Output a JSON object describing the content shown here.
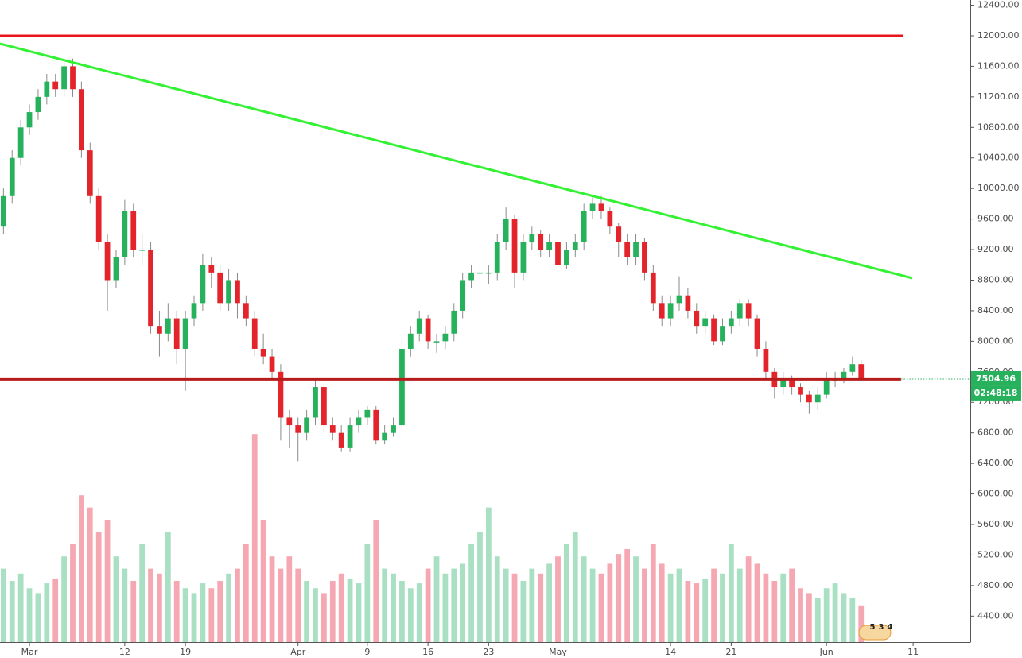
{
  "chart_data": {
    "type": "candlestick",
    "x": [
      -3,
      -2,
      -1,
      0,
      1,
      2,
      3,
      4,
      5,
      6,
      7,
      8,
      9,
      10,
      11,
      12,
      13,
      14,
      15,
      16,
      17,
      18,
      19,
      20,
      21,
      22,
      23,
      24,
      25,
      26,
      27,
      28,
      29,
      30,
      31,
      32,
      33,
      34,
      35,
      36,
      37,
      38,
      39,
      40,
      41,
      42,
      43,
      44,
      45,
      46,
      47,
      48,
      49,
      50,
      51,
      52,
      53,
      54,
      55,
      56,
      57,
      58,
      59,
      60,
      61,
      62,
      63,
      64,
      65,
      66,
      67,
      68,
      69,
      70,
      71,
      72,
      73,
      74,
      75,
      76,
      77,
      78,
      79,
      80,
      81,
      82,
      83,
      84,
      85,
      86,
      87,
      88,
      89,
      90,
      91,
      92,
      93,
      94,
      95,
      96
    ],
    "open": [
      9500,
      9900,
      10400,
      10800,
      11000,
      11200,
      11400,
      11300,
      11600,
      11300,
      10500,
      9900,
      9300,
      8800,
      9100,
      9700,
      9200,
      9200,
      8200,
      8100,
      8300,
      7900,
      8300,
      8500,
      9000,
      8900,
      8500,
      8800,
      8500,
      8300,
      7900,
      7800,
      7600,
      7000,
      6900,
      6800,
      7000,
      7400,
      6900,
      6800,
      6600,
      6900,
      7000,
      7100,
      6700,
      6800,
      6900,
      7900,
      8100,
      8300,
      8000,
      8000,
      8100,
      8400,
      8800,
      8900,
      8900,
      8900,
      9300,
      9600,
      8900,
      9300,
      9400,
      9200,
      9300,
      9000,
      9200,
      9300,
      9700,
      9800,
      9700,
      9500,
      9300,
      9100,
      9300,
      8900,
      8500,
      8300,
      8500,
      8600,
      8400,
      8200,
      8300,
      8000,
      8200,
      8300,
      8500,
      8300,
      7900,
      7600,
      7400,
      7500,
      7400,
      7300,
      7200,
      7300,
      7500,
      7500,
      7600,
      7700
    ],
    "close": [
      9900,
      10400,
      10800,
      11000,
      11200,
      11400,
      11300,
      11600,
      11300,
      10500,
      9900,
      9300,
      8800,
      9100,
      9700,
      9200,
      9200,
      8200,
      8100,
      8300,
      7900,
      8300,
      8500,
      9000,
      8900,
      8500,
      8800,
      8500,
      8300,
      7900,
      7800,
      7600,
      7000,
      6900,
      6800,
      7000,
      7400,
      6900,
      6800,
      6600,
      6900,
      7000,
      7100,
      6700,
      6800,
      6900,
      7900,
      8100,
      8300,
      8000,
      8000,
      8100,
      8400,
      8800,
      8900,
      8900,
      8900,
      9300,
      9600,
      8900,
      9300,
      9400,
      9200,
      9300,
      9000,
      9200,
      9300,
      9700,
      9800,
      9700,
      9500,
      9300,
      9100,
      9300,
      8900,
      8500,
      8300,
      8500,
      8600,
      8400,
      8200,
      8300,
      8000,
      8200,
      8300,
      8500,
      8300,
      7900,
      7600,
      7400,
      7500,
      7400,
      7300,
      7200,
      7300,
      7500,
      7500,
      7600,
      7700,
      7505
    ],
    "high": [
      10000,
      10500,
      10900,
      11100,
      11300,
      11500,
      11500,
      11650,
      11700,
      11400,
      10600,
      10000,
      9400,
      9200,
      9850,
      9800,
      9400,
      9300,
      8400,
      8500,
      8400,
      8400,
      8600,
      9150,
      9100,
      9000,
      8950,
      8900,
      8600,
      8400,
      8100,
      7900,
      7700,
      7100,
      7000,
      7100,
      7500,
      7450,
      7000,
      6900,
      7000,
      7100,
      7150,
      7150,
      6900,
      7000,
      8050,
      8200,
      8400,
      8350,
      8100,
      8200,
      8500,
      8900,
      9000,
      9000,
      9000,
      9400,
      9750,
      9650,
      9400,
      9500,
      9450,
      9400,
      9350,
      9300,
      9400,
      9800,
      9900,
      9900,
      9750,
      9550,
      9400,
      9400,
      9350,
      9000,
      8600,
      8600,
      8850,
      8700,
      8500,
      8400,
      8350,
      8300,
      8400,
      8550,
      8550,
      8350,
      8000,
      7650,
      7600,
      7550,
      7450,
      7350,
      7400,
      7600,
      7600,
      7650,
      7800,
      7750
    ],
    "low": [
      9400,
      9800,
      10300,
      10700,
      10900,
      11100,
      11200,
      11200,
      11200,
      10400,
      9800,
      9200,
      8400,
      8700,
      9000,
      9100,
      9000,
      8100,
      7800,
      8000,
      7700,
      7350,
      8200,
      8400,
      8700,
      8400,
      8400,
      8300,
      8200,
      7800,
      7700,
      7500,
      6700,
      6600,
      6430,
      6700,
      6900,
      6800,
      6700,
      6550,
      6550,
      6800,
      6900,
      6650,
      6650,
      6750,
      6850,
      7800,
      8000,
      7900,
      7850,
      7900,
      8000,
      8300,
      8700,
      8800,
      8750,
      8800,
      9200,
      8700,
      8800,
      9200,
      9100,
      9100,
      8900,
      8950,
      9100,
      9200,
      9600,
      9600,
      9400,
      9100,
      9000,
      9000,
      8800,
      8400,
      8200,
      8200,
      8400,
      8300,
      8100,
      8100,
      7950,
      7950,
      8100,
      8200,
      8200,
      7800,
      7500,
      7250,
      7300,
      7300,
      7200,
      7050,
      7100,
      7250,
      7400,
      7450,
      7550,
      7480
    ],
    "volume": [
      30,
      25,
      28,
      22,
      20,
      24,
      26,
      35,
      40,
      60,
      55,
      45,
      50,
      35,
      30,
      25,
      40,
      30,
      28,
      45,
      25,
      22,
      20,
      24,
      22,
      25,
      28,
      30,
      40,
      85,
      50,
      35,
      30,
      35,
      30,
      25,
      22,
      20,
      25,
      28,
      26,
      24,
      40,
      50,
      30,
      28,
      25,
      22,
      24,
      30,
      35,
      28,
      30,
      32,
      40,
      45,
      55,
      35,
      30,
      28,
      25,
      30,
      28,
      32,
      35,
      40,
      45,
      35,
      30,
      28,
      32,
      36,
      38,
      35,
      30,
      40,
      32,
      28,
      30,
      25,
      24,
      26,
      30,
      28,
      40,
      30,
      35,
      32,
      28,
      25,
      28,
      30,
      22,
      20,
      18,
      22,
      24,
      20,
      18,
      15
    ],
    "volume_lim": [
      0,
      100
    ],
    "up_color": "#27b15c",
    "down_color": "#e3242b",
    "volume_up_color": "#a9dfc2",
    "volume_down_color": "#f5a8b2",
    "xlim": [
      -3.4,
      108.6
    ],
    "xticks": [
      {
        "value": 0,
        "label": "Mar"
      },
      {
        "value": 11,
        "label": "12"
      },
      {
        "value": 18,
        "label": "19"
      },
      {
        "value": 31,
        "label": "Apr"
      },
      {
        "value": 39,
        "label": "9"
      },
      {
        "value": 46,
        "label": "16"
      },
      {
        "value": 53,
        "label": "23"
      },
      {
        "value": 61,
        "label": "May"
      },
      {
        "value": 74,
        "label": "14"
      },
      {
        "value": 81,
        "label": "21"
      },
      {
        "value": 92,
        "label": "Jun"
      },
      {
        "value": 102,
        "label": "11"
      }
    ],
    "ylim": [
      4060,
      12468
    ],
    "yticks": [
      {
        "value": 12400,
        "label": "12400.00"
      },
      {
        "value": 12000,
        "label": "12000.00"
      },
      {
        "value": 11600,
        "label": "11600.00"
      },
      {
        "value": 11200,
        "label": "11200.00"
      },
      {
        "value": 10800,
        "label": "10800.00"
      },
      {
        "value": 10400,
        "label": "10400.00"
      },
      {
        "value": 10000,
        "label": "10000.00"
      },
      {
        "value": 9600,
        "label": "9600.00"
      },
      {
        "value": 9200,
        "label": "9200.00"
      },
      {
        "value": 8800,
        "label": "8800.00"
      },
      {
        "value": 8400,
        "label": "8400.00"
      },
      {
        "value": 8000,
        "label": "8000.00"
      },
      {
        "value": 7600,
        "label": "7600.00"
      },
      {
        "value": 7200,
        "label": "7200.00"
      },
      {
        "value": 6800,
        "label": "6800.00"
      },
      {
        "value": 6400,
        "label": "6400.00"
      },
      {
        "value": 6000,
        "label": "6000.00"
      },
      {
        "value": 5600,
        "label": "5600.00"
      },
      {
        "value": 5200,
        "label": "5200.00"
      },
      {
        "value": 4800,
        "label": "4800.00"
      },
      {
        "value": 4400,
        "label": "4400.00"
      }
    ],
    "lines": [
      {
        "color": "#e8161b",
        "from": [
          -3.4,
          12000
        ],
        "to": [
          100.8,
          12000
        ]
      },
      {
        "color": "#33f233",
        "from": [
          -3.4,
          11896
        ],
        "to": [
          101.9,
          8826
        ]
      },
      {
        "color": "#b71c1c",
        "from": [
          -3.4,
          7500
        ],
        "to": [
          100.6,
          7500
        ]
      }
    ],
    "last_price": 7504.96,
    "countdown": "02:48:18",
    "events": [
      "5",
      "3",
      "4"
    ]
  }
}
